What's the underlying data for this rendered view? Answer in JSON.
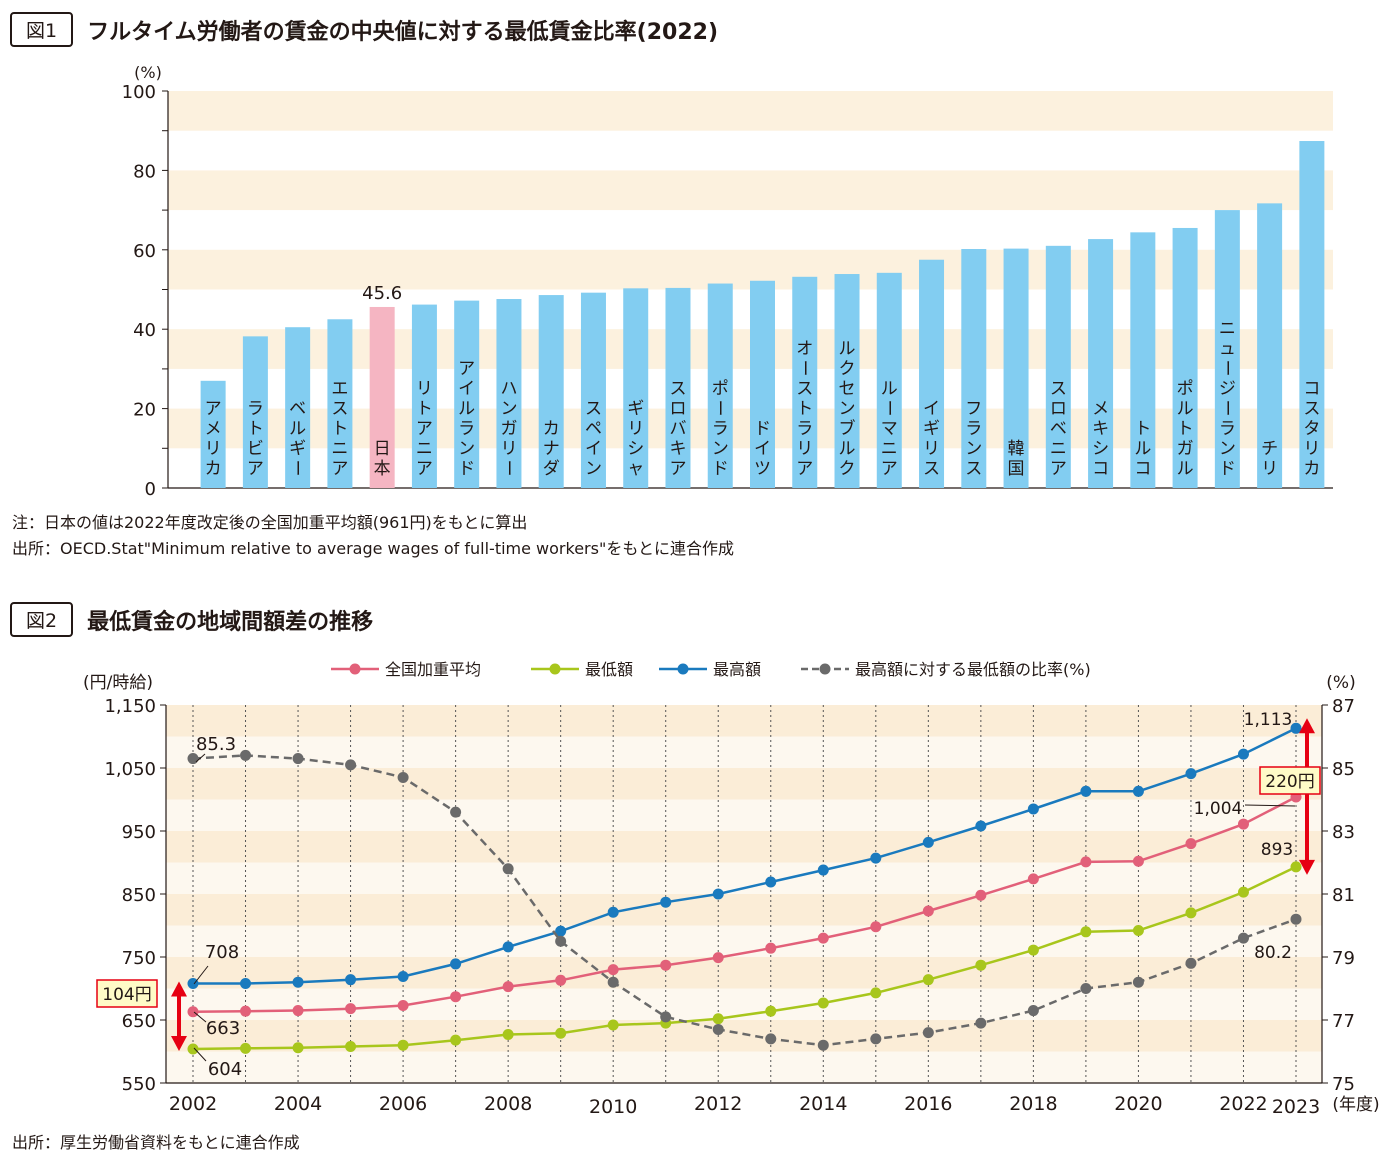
{
  "figure1": {
    "badge": "図1",
    "title": "フルタイム労働者の賃金の中央値に対する最低賃金比率(2022)",
    "notes": [
      "注：日本の値は2022年度改定後の全国加重平均額(961円)をもとに算出",
      "出所：OECD.Stat\"Minimum relative to average wages of full-time workers\"をもとに連合作成"
    ]
  },
  "figure2": {
    "badge": "図2",
    "title": "最低賃金の地域間額差の推移",
    "note": "出所：厚生労働省資料をもとに連合作成"
  },
  "chart_data": [
    {
      "type": "bar",
      "ylabel": "(%)",
      "ylim": [
        0,
        100
      ],
      "yticks": [
        0,
        20,
        40,
        60,
        80,
        100
      ],
      "grid": "alternating horizontal bands",
      "highlight_label": "45.6",
      "colors": {
        "bar": "#82cdf1",
        "highlight": "#f5b5c2",
        "band": "#fcf1de"
      },
      "categories": [
        "アメリカ",
        "ラトビア",
        "ベルギー",
        "エストニア",
        "日本",
        "リトアニア",
        "アイルランド",
        "ハンガリー",
        "カナダ",
        "スペイン",
        "ギリシャ",
        "スロバキア",
        "ポーランド",
        "ドイツ",
        "オーストラリア",
        "ルクセンブルク",
        "ルーマニア",
        "イギリス",
        "フランス",
        "韓国",
        "スロベニア",
        "メキシコ",
        "トルコ",
        "ポルトガル",
        "ニュージーランド",
        "チリ",
        "コスタリカ"
      ],
      "values": [
        27,
        38.2,
        40.5,
        42.5,
        45.6,
        46.2,
        47.2,
        47.6,
        48.6,
        49.2,
        50.3,
        50.4,
        51.5,
        52.2,
        53.2,
        53.9,
        54.2,
        57.5,
        60.2,
        60.3,
        61,
        62.7,
        64.4,
        65.5,
        70,
        71.7,
        87.4
      ],
      "highlight_index": 4
    },
    {
      "type": "line",
      "ylabel": "(円/時給)",
      "y2label": "(%)",
      "xlabel_unit": "(年度)",
      "ylim": [
        550,
        1150
      ],
      "yticks": [
        "550",
        "650",
        "750",
        "850",
        "950",
        "1,050",
        "1,150"
      ],
      "y2lim": [
        75,
        87
      ],
      "y2ticks": [
        "75",
        "77",
        "79",
        "81",
        "83",
        "85",
        "87"
      ],
      "x": [
        2002,
        2003,
        2004,
        2005,
        2006,
        2007,
        2008,
        2009,
        2010,
        2011,
        2012,
        2013,
        2014,
        2015,
        2016,
        2017,
        2018,
        2019,
        2020,
        2021,
        2022,
        2023
      ],
      "xticks_low": [
        "2002",
        "2004",
        "2006",
        "2008",
        "2012",
        "2014",
        "2016",
        "2018",
        "2020",
        "2022"
      ],
      "xticks_high": [
        "2010",
        "2023"
      ],
      "grid": "vertical dotted lines, alternating horizontal bands",
      "series": [
        {
          "name": "全国加重平均",
          "axis": "left",
          "color": "#e26079",
          "dash": false,
          "values": [
            663,
            664,
            665,
            668,
            673,
            687,
            703,
            713,
            730,
            737,
            749,
            764,
            780,
            798,
            823,
            848,
            874,
            901,
            902,
            930,
            961,
            1004
          ]
        },
        {
          "name": "最低額",
          "axis": "left",
          "color": "#a8c61c",
          "dash": false,
          "values": [
            604,
            605,
            606,
            608,
            610,
            618,
            627,
            629,
            642,
            645,
            652,
            664,
            677,
            693,
            714,
            737,
            761,
            790,
            792,
            820,
            853,
            893
          ]
        },
        {
          "name": "最高額",
          "axis": "left",
          "color": "#1a7abe",
          "dash": false,
          "values": [
            708,
            708,
            710,
            714,
            719,
            739,
            766,
            791,
            821,
            837,
            850,
            869,
            888,
            907,
            932,
            958,
            985,
            1013,
            1013,
            1041,
            1072,
            1113
          ]
        },
        {
          "name": "最高額に対する最低額の比率(%)",
          "axis": "right",
          "color": "#6a6a6a",
          "dash": true,
          "values": [
            85.3,
            85.4,
            85.3,
            85.1,
            84.7,
            83.6,
            81.8,
            79.5,
            78.2,
            77.1,
            76.7,
            76.4,
            76.2,
            76.4,
            76.6,
            76.9,
            77.3,
            78,
            78.2,
            78.8,
            79.6,
            80.2
          ]
        }
      ],
      "annotations": {
        "start_high": "708",
        "start_avg": "663",
        "start_low": "604",
        "start_ratio": "85.3",
        "end_high": "1,113",
        "end_avg": "1,004",
        "end_low": "893",
        "end_ratio": "80.2",
        "gap_2002": "104円",
        "gap_2023": "220円"
      }
    }
  ]
}
